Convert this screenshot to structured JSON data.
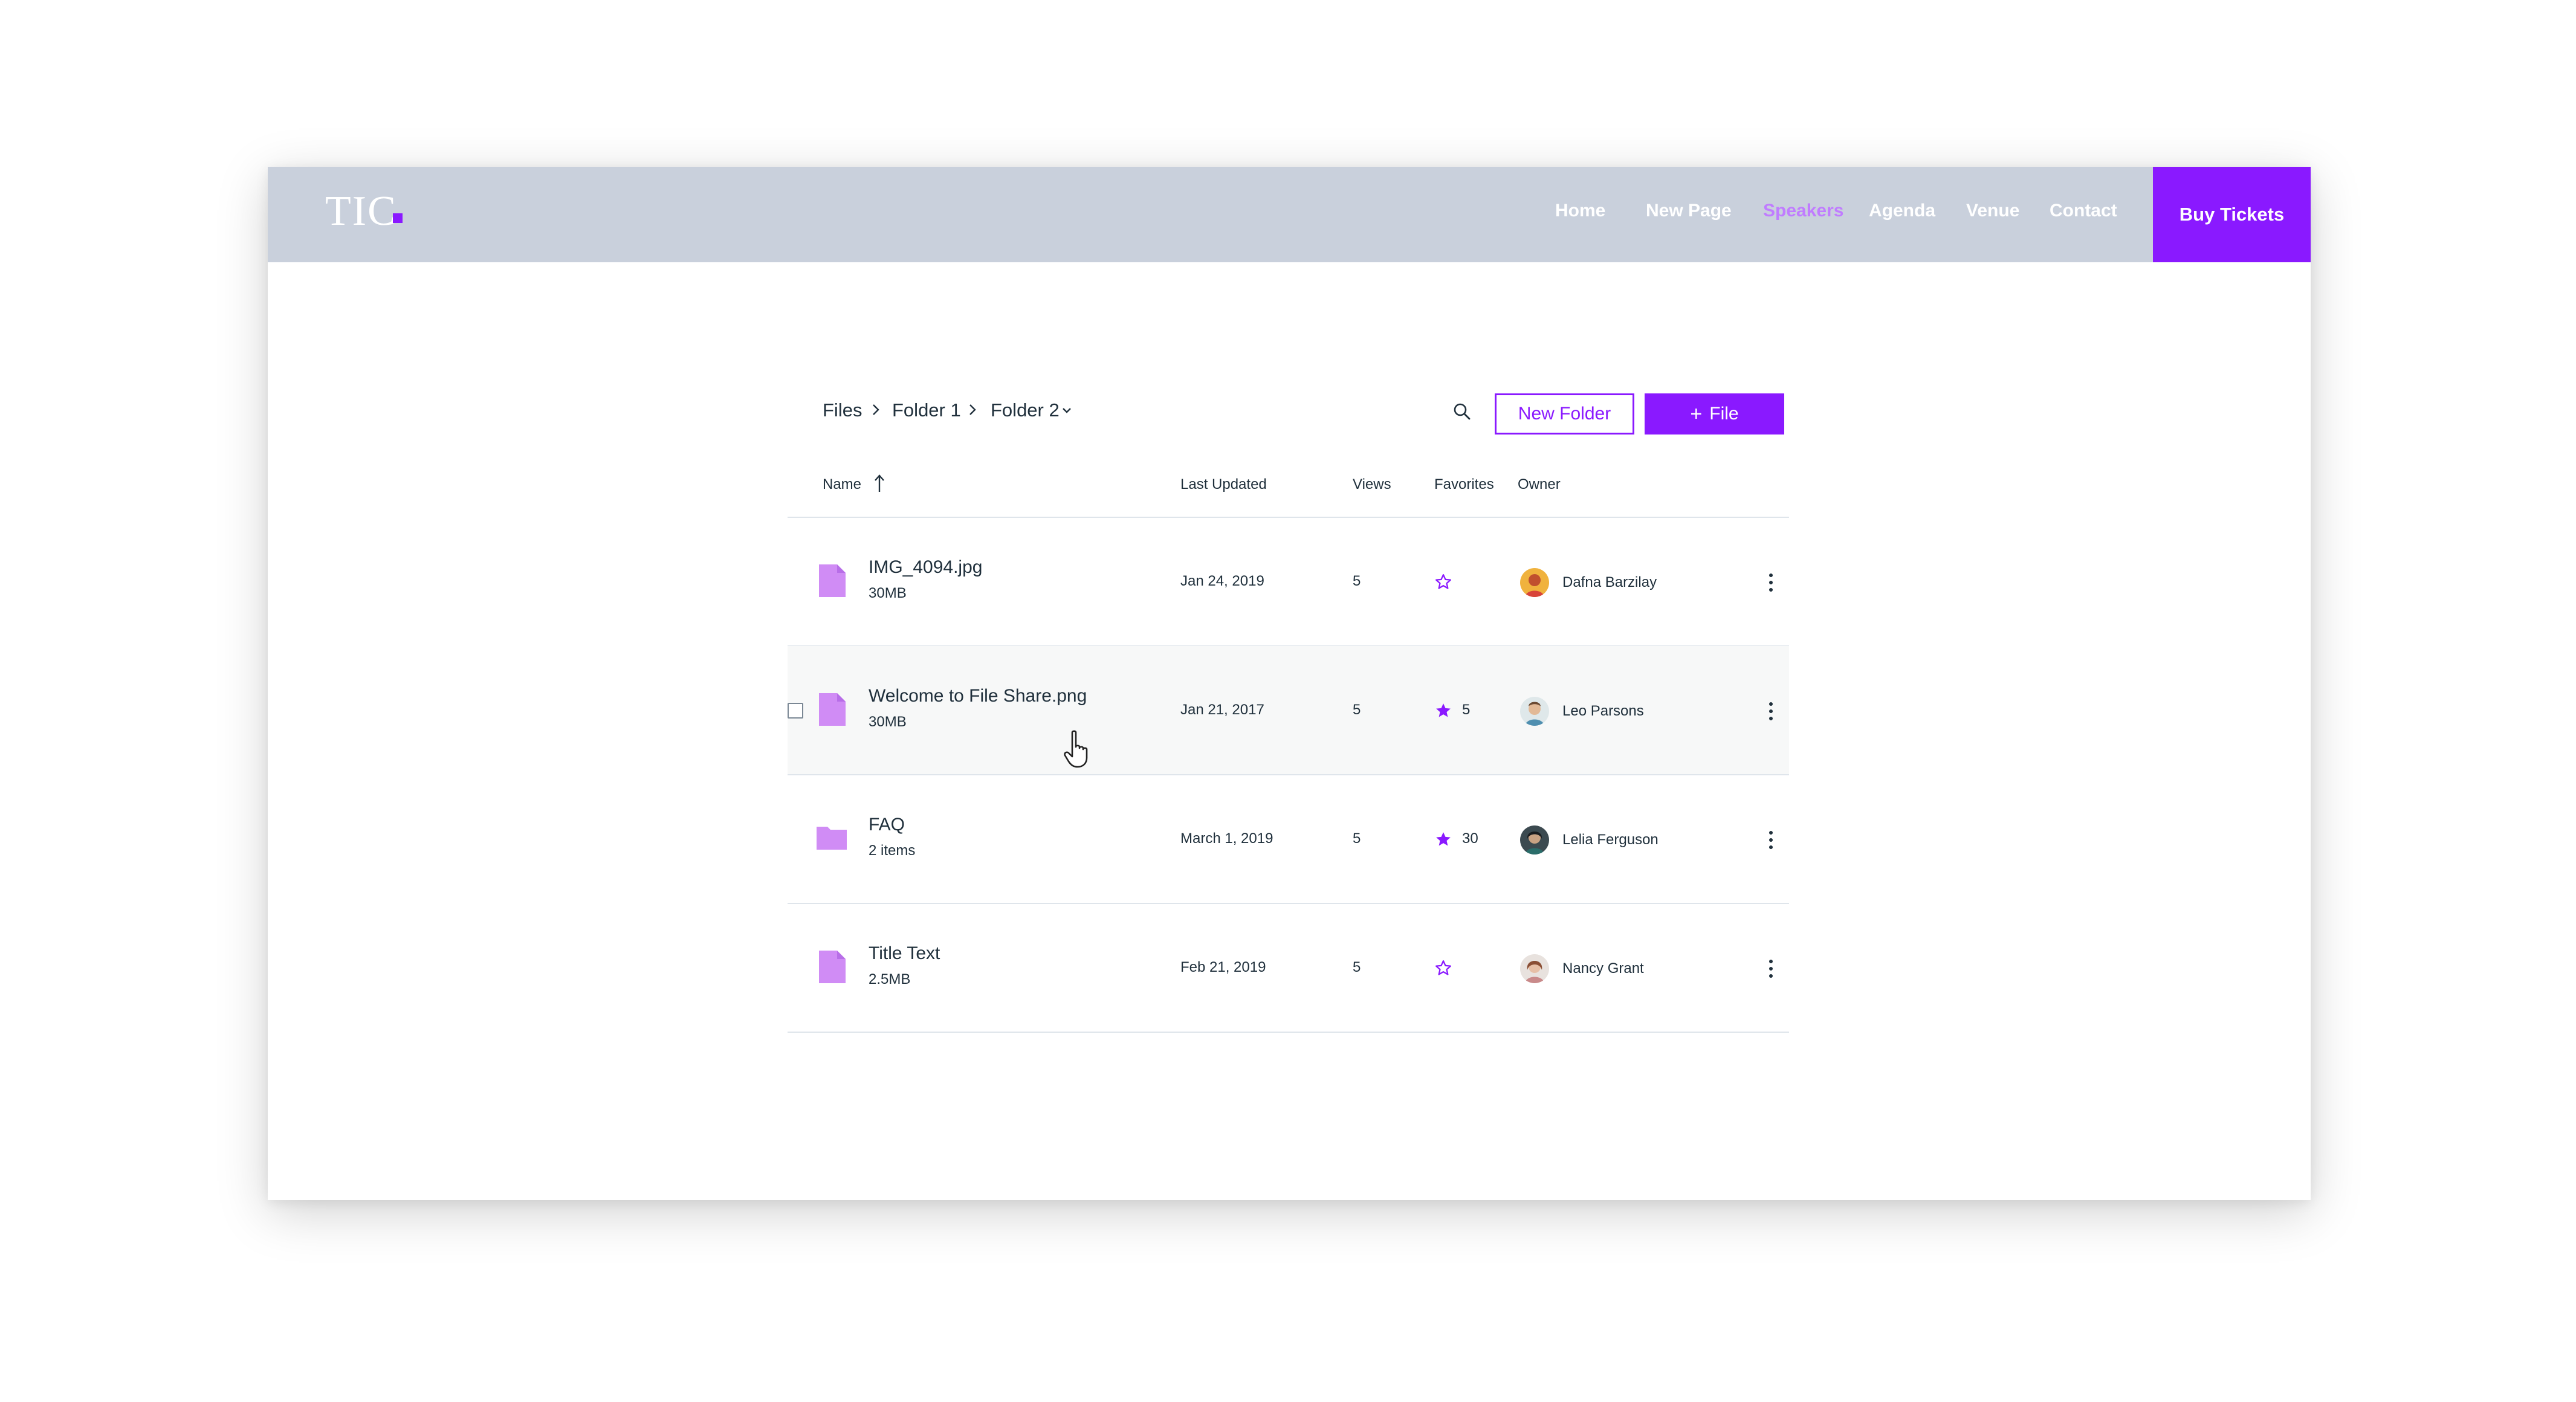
{
  "site": {
    "logo_text": "TIC",
    "nav": [
      {
        "label": "Home",
        "active": false
      },
      {
        "label": "New Page",
        "active": false
      },
      {
        "label": "Speakers",
        "active": true
      },
      {
        "label": "Agenda",
        "active": false
      },
      {
        "label": "Venue",
        "active": false
      },
      {
        "label": "Contact",
        "active": false
      }
    ],
    "cta_label": "Buy Tickets"
  },
  "breadcrumb": [
    "Files",
    "Folder 1",
    "Folder 2"
  ],
  "toolbar": {
    "new_folder_label": "New Folder",
    "add_file_label": "File",
    "add_file_icon": "plus-icon",
    "search_icon": "search-icon"
  },
  "table": {
    "columns": [
      "Name",
      "Last Updated",
      "Views",
      "Favorites",
      "Owner"
    ],
    "sort": {
      "column": "Name",
      "direction": "ascending"
    },
    "rows": [
      {
        "type": "file",
        "name": "IMG_4094.jpg",
        "sub": "30MB",
        "updated": "Jan 24, 2019",
        "views": "5",
        "favorited": false,
        "favorites": "",
        "owner": "Dafna Barzilay",
        "hovered": false
      },
      {
        "type": "file",
        "name": "Welcome to File Share.png",
        "sub": "30MB",
        "updated": "Jan 21, 2017",
        "views": "5",
        "favorited": true,
        "favorites": "5",
        "owner": "Leo Parsons",
        "hovered": true
      },
      {
        "type": "folder",
        "name": "FAQ",
        "sub": "2 items",
        "updated": "March 1, 2019",
        "views": "5",
        "favorited": true,
        "favorites": "30",
        "owner": "Lelia Ferguson",
        "hovered": false
      },
      {
        "type": "file",
        "name": "Title Text",
        "sub": "2.5MB",
        "updated": "Feb 21, 2019",
        "views": "5",
        "favorited": false,
        "favorites": "",
        "owner": "Nancy Grant",
        "hovered": false
      }
    ]
  },
  "colors": {
    "accent": "#8a19ff",
    "accent_light": "#c07cff",
    "file_icon": "#d08cf5",
    "header_bg": "#c9d0dc",
    "row_hover": "#f7f8f8"
  }
}
